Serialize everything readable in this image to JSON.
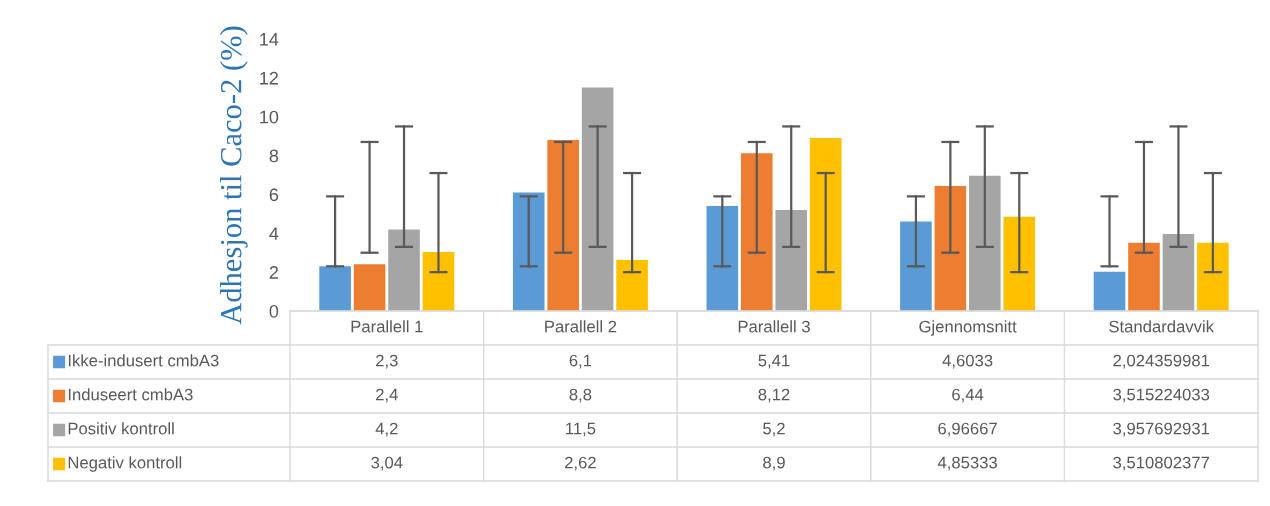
{
  "chart_data": {
    "type": "bar",
    "ylabel": "Adhesjon til Caco-2 (%)",
    "categories": [
      "Parallell 1",
      "Parallell 2",
      "Parallell 3",
      "Gjennomsnitt",
      "Standardavvik"
    ],
    "series": [
      {
        "name": "Ikke-indusert cmbA3",
        "color": "#5b9bd5",
        "values": [
          2.3,
          6.1,
          5.41,
          4.6033,
          2.024359981
        ],
        "value_labels": [
          "2,3",
          "6,1",
          "5,41",
          "4,6033",
          "2,024359981"
        ],
        "errors": [
          [
            2.3,
            5.9
          ],
          [
            2.3,
            5.9
          ],
          [
            2.3,
            5.9
          ],
          [
            2.3,
            5.9
          ],
          [
            2.3,
            5.9
          ]
        ]
      },
      {
        "name": "Induseert cmbA3",
        "color": "#ed7d31",
        "values": [
          2.4,
          8.8,
          8.12,
          6.44,
          3.515224033
        ],
        "value_labels": [
          "2,4",
          "8,8",
          "8,12",
          "6,44",
          "3,515224033"
        ],
        "errors": [
          [
            3.0,
            8.7
          ],
          [
            3.0,
            8.7
          ],
          [
            3.0,
            8.7
          ],
          [
            3.0,
            8.7
          ],
          [
            3.0,
            8.7
          ]
        ]
      },
      {
        "name": "Positiv kontroll",
        "color": "#a5a5a5",
        "values": [
          4.2,
          11.5,
          5.2,
          6.96667,
          3.957692931
        ],
        "value_labels": [
          "4,2",
          "11,5",
          "5,2",
          "6,96667",
          "3,957692931"
        ],
        "errors": [
          [
            3.3,
            9.5
          ],
          [
            3.3,
            9.5
          ],
          [
            3.3,
            9.5
          ],
          [
            3.3,
            9.5
          ],
          [
            3.3,
            9.5
          ]
        ]
      },
      {
        "name": "Negativ kontroll",
        "color": "#ffc000",
        "values": [
          3.04,
          2.62,
          8.9,
          4.85333,
          3.510802377
        ],
        "value_labels": [
          "3,04",
          "2,62",
          "8,9",
          "4,85333",
          "3,510802377"
        ],
        "errors": [
          [
            2.0,
            7.1
          ],
          [
            2.0,
            7.1
          ],
          [
            2.0,
            7.1
          ],
          [
            2.0,
            7.1
          ],
          [
            2.0,
            7.1
          ]
        ]
      }
    ],
    "ylim": [
      0,
      14
    ],
    "yticks": [
      0,
      2,
      4,
      6,
      8,
      10,
      12,
      14
    ],
    "grid": false,
    "legend": "bottom"
  }
}
